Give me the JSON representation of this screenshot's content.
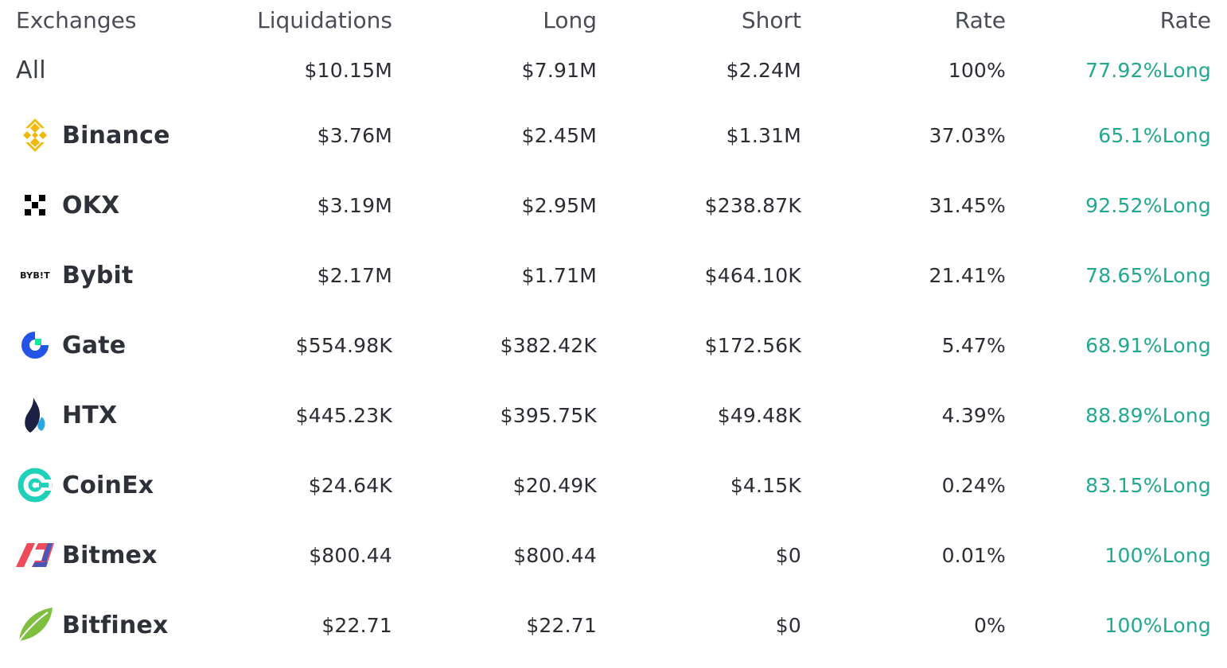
{
  "header": {
    "exchanges": "Exchanges",
    "liquidations": "Liquidations",
    "long": "Long",
    "short": "Short",
    "rate": "Rate",
    "rate2": "Rate"
  },
  "rows": [
    {
      "name": "All",
      "liquidations": "$10.15M",
      "long": "$7.91M",
      "short": "$2.24M",
      "rate": "100%",
      "ratio": "77.92%Long"
    },
    {
      "name": "Binance",
      "icon": "binance-icon",
      "liquidations": "$3.76M",
      "long": "$2.45M",
      "short": "$1.31M",
      "rate": "37.03%",
      "ratio": "65.1%Long"
    },
    {
      "name": "OKX",
      "icon": "okx-icon",
      "liquidations": "$3.19M",
      "long": "$2.95M",
      "short": "$238.87K",
      "rate": "31.45%",
      "ratio": "92.52%Long"
    },
    {
      "name": "Bybit",
      "icon": "bybit-icon",
      "logo_text": "BYB!T",
      "liquidations": "$2.17M",
      "long": "$1.71M",
      "short": "$464.10K",
      "rate": "21.41%",
      "ratio": "78.65%Long"
    },
    {
      "name": "Gate",
      "icon": "gate-icon",
      "liquidations": "$554.98K",
      "long": "$382.42K",
      "short": "$172.56K",
      "rate": "5.47%",
      "ratio": "68.91%Long"
    },
    {
      "name": "HTX",
      "icon": "htx-icon",
      "liquidations": "$445.23K",
      "long": "$395.75K",
      "short": "$49.48K",
      "rate": "4.39%",
      "ratio": "88.89%Long"
    },
    {
      "name": "CoinEx",
      "icon": "coinex-icon",
      "liquidations": "$24.64K",
      "long": "$20.49K",
      "short": "$4.15K",
      "rate": "0.24%",
      "ratio": "83.15%Long"
    },
    {
      "name": "Bitmex",
      "icon": "bitmex-icon",
      "liquidations": "$800.44",
      "long": "$800.44",
      "short": "$0",
      "rate": "0.01%",
      "ratio": "100%Long"
    },
    {
      "name": "Bitfinex",
      "icon": "bitfinex-icon",
      "liquidations": "$22.71",
      "long": "$22.71",
      "short": "$0",
      "rate": "0%",
      "ratio": "100%Long"
    }
  ],
  "colors": {
    "long_green": "#22a88e",
    "binance": "#f0b90b",
    "gate_blue": "#2354e6",
    "gate_green": "#17e6a1",
    "htx_navy": "#1b2143",
    "htx_blue": "#2ca6e0",
    "coinex": "#1fd1b8",
    "bitmex_red": "#ee4c5b",
    "bitmex_blue": "#4a56b8",
    "bitfinex": "#7fbf3f"
  }
}
